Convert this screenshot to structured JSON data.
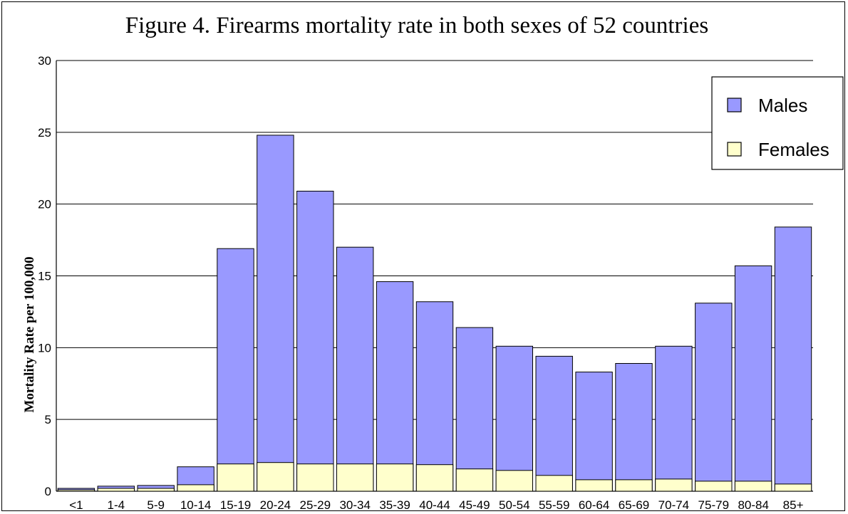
{
  "chart_data": {
    "type": "bar",
    "title": "Figure 4. Firearms mortality rate in both sexes of 52 countries",
    "xlabel": "",
    "ylabel": "Mortality Rate per 100,000",
    "ylim": [
      0,
      30
    ],
    "yticks": [
      "0",
      "5",
      "10",
      "15",
      "20",
      "25",
      "30"
    ],
    "grid": true,
    "legend_position": "top-right",
    "categories": [
      "<1",
      "1-4",
      "5-9",
      "10-14",
      "15-19",
      "20-24",
      "25-29",
      "30-34",
      "35-39",
      "40-44",
      "45-49",
      "50-54",
      "55-59",
      "60-64",
      "65-69",
      "70-74",
      "75-79",
      "80-84",
      "85+"
    ],
    "series": [
      {
        "name": "Males",
        "color": "#9999ff",
        "values": [
          0.2,
          0.35,
          0.4,
          1.7,
          16.9,
          24.8,
          20.9,
          17.0,
          14.6,
          13.2,
          11.4,
          10.1,
          9.4,
          8.3,
          8.9,
          10.1,
          13.1,
          15.7,
          18.4
        ]
      },
      {
        "name": "Females",
        "color": "#ffffcc",
        "values": [
          0.1,
          0.2,
          0.2,
          0.45,
          1.9,
          2.0,
          1.9,
          1.9,
          1.9,
          1.85,
          1.55,
          1.45,
          1.1,
          0.8,
          0.8,
          0.85,
          0.7,
          0.7,
          0.5
        ]
      }
    ]
  }
}
